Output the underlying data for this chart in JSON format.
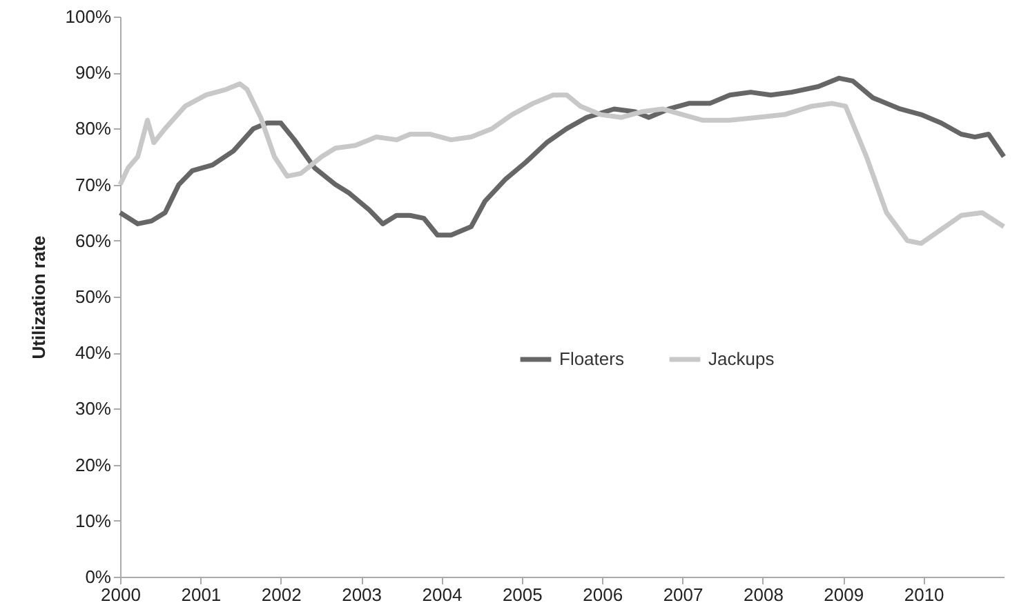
{
  "chart_data": {
    "type": "line",
    "ylabel": "Utilization rate",
    "xlim": [
      2000,
      2011
    ],
    "xticks": [
      2000,
      2001,
      2002,
      2003,
      2004,
      2005,
      2006,
      2007,
      2008,
      2009,
      2010
    ],
    "ylim": [
      0,
      100
    ],
    "yticks": [
      {
        "value": 0,
        "label": "0%"
      },
      {
        "value": 10,
        "label": "10%"
      },
      {
        "value": 20,
        "label": "20%"
      },
      {
        "value": 30,
        "label": "30%"
      },
      {
        "value": 40,
        "label": "40%"
      },
      {
        "value": 50,
        "label": "50%"
      },
      {
        "value": 60,
        "label": "60%"
      },
      {
        "value": 70,
        "label": "70%"
      },
      {
        "value": 80,
        "label": "80%"
      },
      {
        "value": 90,
        "label": "90%"
      },
      {
        "value": 100,
        "label": "100%"
      }
    ],
    "grid": false,
    "legend": "center",
    "marker": "none",
    "line_style": "solid",
    "series": [
      {
        "name": "Floaters",
        "color": "#666666",
        "x": [
          2000.0,
          2000.22,
          2000.39,
          2000.56,
          2000.73,
          2000.9,
          2001.15,
          2001.41,
          2001.66,
          2001.83,
          2002.0,
          2002.17,
          2002.42,
          2002.68,
          2002.85,
          2003.1,
          2003.27,
          2003.44,
          2003.61,
          2003.78,
          2003.95,
          2004.12,
          2004.37,
          2004.54,
          2004.8,
          2005.05,
          2005.31,
          2005.56,
          2005.81,
          2006.15,
          2006.41,
          2006.58,
          2006.83,
          2007.08,
          2007.34,
          2007.59,
          2007.85,
          2008.1,
          2008.36,
          2008.69,
          2008.95,
          2009.12,
          2009.37,
          2009.71,
          2009.97,
          2010.22,
          2010.47,
          2010.64,
          2010.81,
          2011.0
        ],
        "values": [
          65,
          63,
          63.5,
          65,
          70,
          72.5,
          73.5,
          76,
          80,
          81,
          81,
          78,
          73,
          70,
          68.5,
          65.5,
          63,
          64.5,
          64.5,
          64,
          61,
          61,
          62.5,
          67,
          71,
          74,
          77.5,
          80,
          82,
          83.5,
          83,
          82,
          83.5,
          84.5,
          84.5,
          86,
          86.5,
          86,
          86.5,
          87.5,
          89,
          88.5,
          85.5,
          83.5,
          82.5,
          81,
          79,
          78.5,
          79,
          75
        ]
      },
      {
        "name": "Jackups",
        "color": "#c8c8c8",
        "x": [
          2000.0,
          2000.1,
          2000.22,
          2000.34,
          2000.42,
          2000.56,
          2000.81,
          2001.07,
          2001.32,
          2001.49,
          2001.58,
          2001.75,
          2001.92,
          2002.08,
          2002.25,
          2002.51,
          2002.68,
          2002.93,
          2003.19,
          2003.44,
          2003.61,
          2003.86,
          2004.12,
          2004.37,
          2004.63,
          2004.88,
          2005.14,
          2005.39,
          2005.56,
          2005.73,
          2005.98,
          2006.24,
          2006.49,
          2006.75,
          2007.0,
          2007.25,
          2007.59,
          2007.93,
          2008.27,
          2008.61,
          2008.86,
          2009.03,
          2009.29,
          2009.54,
          2009.8,
          2009.97,
          2010.22,
          2010.47,
          2010.73,
          2011.0
        ],
        "values": [
          70,
          73,
          75,
          81.5,
          77.5,
          80,
          84,
          86,
          87,
          88,
          87,
          82,
          75,
          71.5,
          72,
          75,
          76.5,
          77,
          78.5,
          78,
          79,
          79,
          78,
          78.5,
          80,
          82.5,
          84.5,
          86,
          86,
          84,
          82.5,
          82,
          83,
          83.5,
          82.5,
          81.5,
          81.5,
          82,
          82.5,
          84,
          84.5,
          84,
          75,
          65,
          60,
          59.5,
          62,
          64.5,
          65,
          62.5
        ]
      }
    ]
  }
}
